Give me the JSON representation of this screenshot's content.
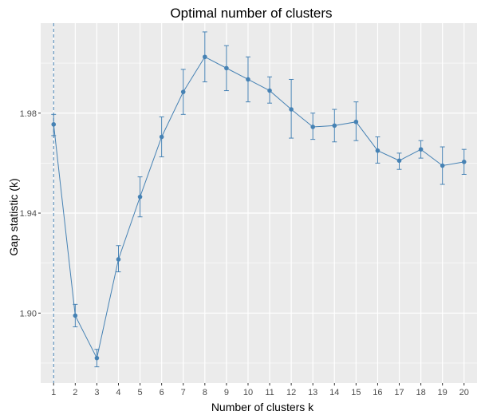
{
  "chart_data": {
    "type": "line",
    "title": "Optimal number of clusters",
    "xlabel": "Number of clusters k",
    "ylabel": "Gap statistic (k)",
    "x": [
      1,
      2,
      3,
      4,
      5,
      6,
      7,
      8,
      9,
      10,
      11,
      12,
      13,
      14,
      15,
      16,
      17,
      18,
      19,
      20
    ],
    "series": [
      {
        "values": [
          1.9755,
          1.899,
          1.882,
          1.9215,
          1.9465,
          1.9705,
          1.9885,
          2.0025,
          1.998,
          1.9935,
          1.989,
          1.9815,
          1.9745,
          1.975,
          1.9765,
          1.965,
          1.961,
          1.9655,
          1.959,
          1.9605
        ],
        "error_low": [
          1.971,
          1.8945,
          1.8785,
          1.9165,
          1.9385,
          1.9625,
          1.9795,
          1.9925,
          1.989,
          1.9845,
          1.984,
          1.97,
          1.9695,
          1.9685,
          1.969,
          1.96,
          1.9575,
          1.962,
          1.9515,
          1.9555
        ],
        "error_high": [
          1.9795,
          1.9035,
          1.8855,
          1.927,
          1.9545,
          1.9785,
          1.9975,
          2.0125,
          2.007,
          2.0025,
          1.9945,
          1.9935,
          1.98,
          1.9815,
          1.9845,
          1.9705,
          1.964,
          1.969,
          1.9665,
          1.9655
        ],
        "color": "#4682b4"
      }
    ],
    "optimal_k": 1,
    "ylim": [
      1.872,
      2.016
    ],
    "xlim": [
      0.4,
      20.6
    ],
    "y_ticks": [
      "1.90",
      "1.94",
      "1.98"
    ],
    "y_tick_values": [
      1.9,
      1.94,
      1.98
    ],
    "x_ticks": [
      "1",
      "2",
      "3",
      "4",
      "5",
      "6",
      "7",
      "8",
      "9",
      "10",
      "11",
      "12",
      "13",
      "14",
      "15",
      "16",
      "17",
      "18",
      "19",
      "20"
    ],
    "grid": true,
    "panel_color": "#ebebeb",
    "grid_color": "#ffffff"
  }
}
